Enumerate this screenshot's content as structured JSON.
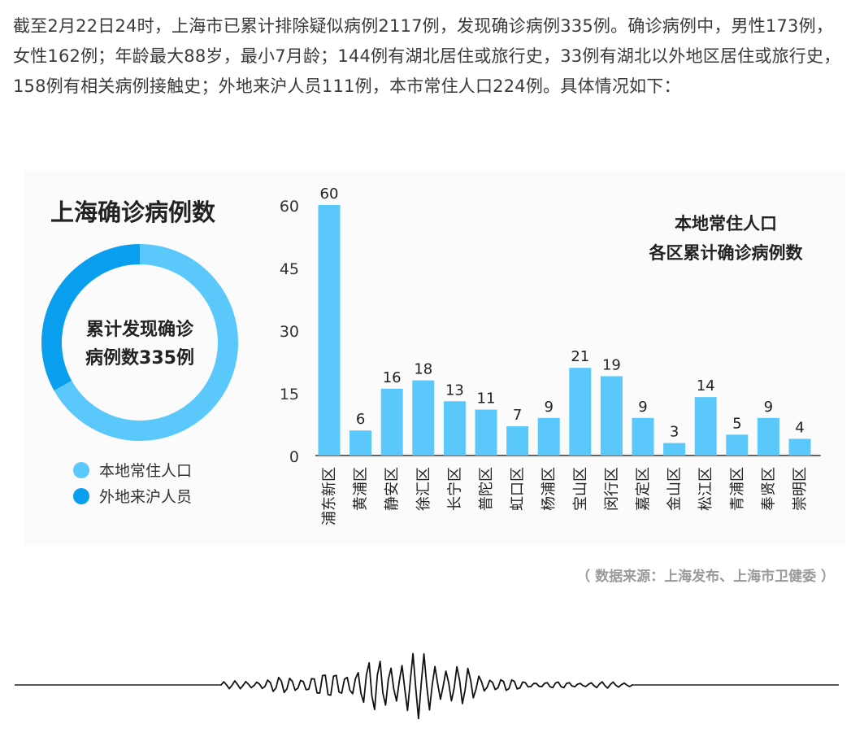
{
  "intro_text": "截至2月22日24时，上海市已累计排除疑似病例2117例，发现确诊病例335例。确诊病例中，男性173例，女性162例；年龄最大88岁，最小7月龄；144例有湖北居住或旅行史，33例有湖北以外地区居住或旅行史，158例有相关病例接触史；外地来沪人员111例，本市常住人口224例。具体情况如下：",
  "source_note": "（ 数据来源：上海发布、上海市卫健委 ）",
  "colors": {
    "local": "#5ac8fa",
    "nonlocal": "#0a9eef",
    "bar": "#5ac8fa",
    "axis": "#333333",
    "bg_panel": "#fafafa"
  },
  "chart_data": [
    {
      "type": "pie",
      "title": "上海确诊病例数",
      "center_label_line1": "累计发现确诊",
      "center_label_line2": "病例数335例",
      "series": [
        {
          "name": "本地常住人口",
          "value": 224,
          "color": "#5ac8fa"
        },
        {
          "name": "外地来沪人员",
          "value": 111,
          "color": "#0a9eef"
        }
      ],
      "legend_position": "bottom"
    },
    {
      "type": "bar",
      "title_line1": "本地常住人口",
      "title_line2": "各区累计确诊病例数",
      "categories": [
        "浦东新区",
        "黄浦区",
        "静安区",
        "徐汇区",
        "长宁区",
        "普陀区",
        "虹口区",
        "杨浦区",
        "宝山区",
        "闵行区",
        "嘉定区",
        "金山区",
        "松江区",
        "青浦区",
        "奉贤区",
        "崇明区"
      ],
      "values": [
        60,
        6,
        16,
        18,
        13,
        11,
        7,
        9,
        21,
        19,
        9,
        3,
        14,
        5,
        9,
        4
      ],
      "yticks": [
        "0",
        "15",
        "30",
        "45",
        "60"
      ],
      "ylim": [
        0,
        60
      ],
      "grid": false
    }
  ]
}
